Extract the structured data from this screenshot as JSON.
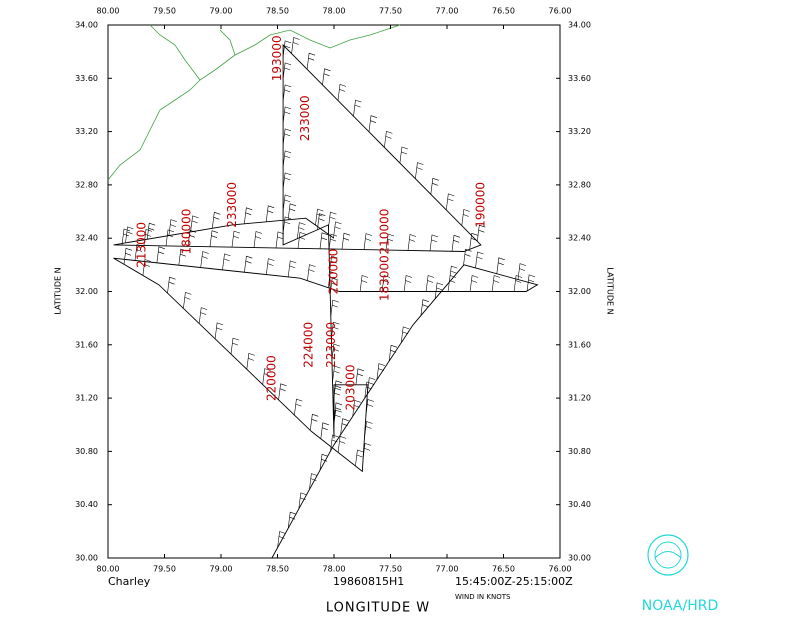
{
  "map": {
    "storm": "Charley",
    "flight": "19860815H1",
    "time_range": "15:45:00Z-25:15:00Z",
    "units_note": "WIND IN KNOTS",
    "x_label": "LONGITUDE  W",
    "y_label_left": "LATITUDE  N",
    "y_label_right": "LATITUDE  N",
    "agency": "NOAA/HRD",
    "xlim": [
      80,
      76
    ],
    "ylim": [
      30,
      34
    ],
    "xticks": [
      {
        "value": 80,
        "label": "80.00"
      },
      {
        "value": 79.5,
        "label": "79.50"
      },
      {
        "value": 79,
        "label": "79.00"
      },
      {
        "value": 78.5,
        "label": "78.50"
      },
      {
        "value": 78,
        "label": "78.00"
      },
      {
        "value": 77.5,
        "label": "77.50"
      },
      {
        "value": 77,
        "label": "77.00"
      },
      {
        "value": 76.5,
        "label": "76.50"
      },
      {
        "value": 76,
        "label": "76.00"
      }
    ],
    "yticks": [
      {
        "value": 30,
        "label": "30.00"
      },
      {
        "value": 30.4,
        "label": "30.40"
      },
      {
        "value": 30.8,
        "label": "30.80"
      },
      {
        "value": 31.2,
        "label": "31.20"
      },
      {
        "value": 31.6,
        "label": "31.60"
      },
      {
        "value": 32,
        "label": "32.00"
      },
      {
        "value": 32.4,
        "label": "32.40"
      },
      {
        "value": 32.8,
        "label": "32.80"
      },
      {
        "value": 33.2,
        "label": "33.20"
      },
      {
        "value": 33.6,
        "label": "33.60"
      },
      {
        "value": 34,
        "label": "34.00"
      }
    ],
    "track": {
      "lon": [
        78.55,
        78.0,
        77.3,
        76.85,
        76.2,
        76.3,
        77.95,
        78.3,
        79.95,
        79.55,
        78.2,
        77.75,
        77.7,
        78.0,
        78.0,
        78.05,
        78.45,
        78.45,
        76.7,
        76.85,
        79.95,
        78.9,
        78.25,
        78.0
      ],
      "lat": [
        30.0,
        30.85,
        31.75,
        32.2,
        32.05,
        32.0,
        32.0,
        32.1,
        32.25,
        32.05,
        30.95,
        30.65,
        31.3,
        31.3,
        30.9,
        32.5,
        32.35,
        33.85,
        32.35,
        32.3,
        32.35,
        32.5,
        32.55,
        32.4
      ]
    },
    "time_labels": [
      {
        "text": "193000",
        "lon": 78.5,
        "lat": 33.75
      },
      {
        "text": "233000",
        "lon": 78.25,
        "lat": 33.3
      },
      {
        "text": "190000",
        "lon": 76.7,
        "lat": 32.65
      },
      {
        "text": "210000",
        "lon": 77.55,
        "lat": 32.45
      },
      {
        "text": "183000",
        "lon": 77.55,
        "lat": 32.1
      },
      {
        "text": "213000",
        "lon": 79.7,
        "lat": 32.35
      },
      {
        "text": "180000",
        "lon": 79.3,
        "lat": 32.45
      },
      {
        "text": "233000",
        "lon": 78.9,
        "lat": 32.65
      },
      {
        "text": "220000",
        "lon": 78.0,
        "lat": 32.15
      },
      {
        "text": "220000",
        "lon": 78.55,
        "lat": 31.35
      },
      {
        "text": "224000",
        "lon": 78.22,
        "lat": 31.6
      },
      {
        "text": "223000",
        "lon": 78.02,
        "lat": 31.6
      },
      {
        "text": "203000",
        "lon": 77.85,
        "lat": 31.28
      }
    ]
  }
}
